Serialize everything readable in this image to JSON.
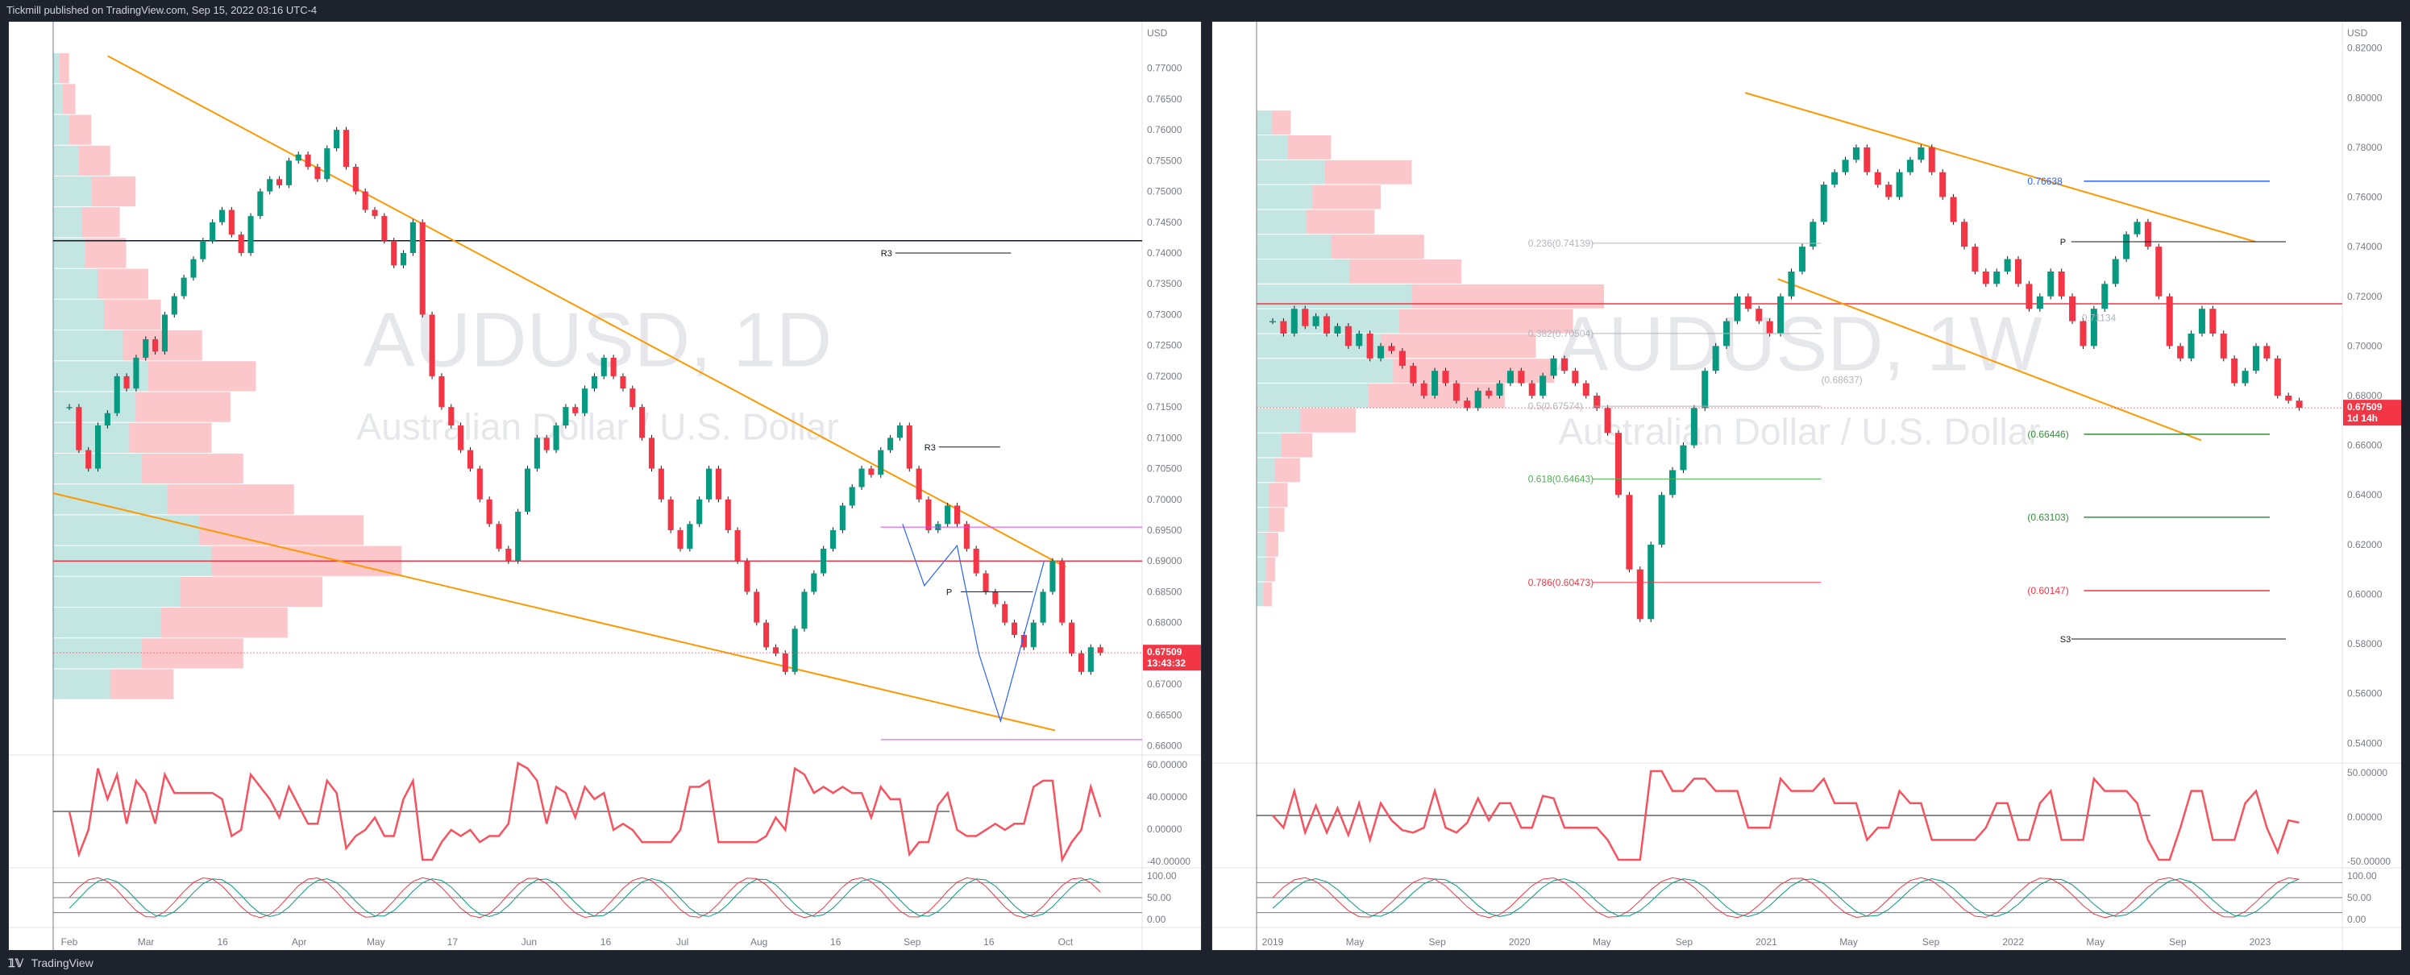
{
  "header": {
    "publisher_line": "Tickmill published on TradingView.com, Sep 15, 2022 03:16 UTC-4"
  },
  "footer": {
    "brand": "TradingView"
  },
  "chart_data": [
    {
      "type": "candlestick",
      "symbol_watermark": "AUDUSD, 1D",
      "description_watermark": "Australian Dollar / U.S. Dollar",
      "currency": "USD",
      "ylim": [
        0.6585,
        0.7765
      ],
      "y_ticks": [
        "0.77000",
        "0.76500",
        "0.76000",
        "0.75500",
        "0.75000",
        "0.74500",
        "0.74000",
        "0.73500",
        "0.73000",
        "0.72500",
        "0.72000",
        "0.71500",
        "0.71000",
        "0.70500",
        "0.70000",
        "0.69500",
        "0.69000",
        "0.68500",
        "0.68000",
        "0.67500",
        "0.67000",
        "0.66500",
        "0.66000"
      ],
      "x_ticks": [
        "Feb",
        "Mar",
        "16",
        "Apr",
        "May",
        "17",
        "Jun",
        "16",
        "Jul",
        "Aug",
        "16",
        "Sep",
        "16",
        "Oct"
      ],
      "last_price": "0.67509",
      "countdown": "13:43:32",
      "pivot_labels": [
        "R3",
        "R3",
        "P"
      ],
      "closes": [
        0.715,
        0.708,
        0.705,
        0.712,
        0.714,
        0.72,
        0.718,
        0.723,
        0.726,
        0.724,
        0.73,
        0.733,
        0.736,
        0.739,
        0.742,
        0.745,
        0.747,
        0.743,
        0.74,
        0.746,
        0.75,
        0.752,
        0.751,
        0.755,
        0.756,
        0.754,
        0.752,
        0.757,
        0.76,
        0.754,
        0.75,
        0.747,
        0.746,
        0.742,
        0.738,
        0.74,
        0.745,
        0.73,
        0.72,
        0.715,
        0.712,
        0.708,
        0.705,
        0.7,
        0.696,
        0.692,
        0.69,
        0.698,
        0.705,
        0.71,
        0.708,
        0.712,
        0.715,
        0.714,
        0.718,
        0.72,
        0.723,
        0.72,
        0.718,
        0.715,
        0.71,
        0.705,
        0.7,
        0.695,
        0.692,
        0.696,
        0.7,
        0.705,
        0.7,
        0.695,
        0.69,
        0.685,
        0.68,
        0.676,
        0.675,
        0.672,
        0.679,
        0.685,
        0.688,
        0.692,
        0.695,
        0.699,
        0.702,
        0.705,
        0.704,
        0.708,
        0.71,
        0.712,
        0.705,
        0.7,
        0.695,
        0.696,
        0.699,
        0.696,
        0.692,
        0.688,
        0.685,
        0.683,
        0.68,
        0.678,
        0.676,
        0.68,
        0.685,
        0.69,
        0.68,
        0.675,
        0.672,
        0.676,
        0.6751
      ],
      "volume_profile": [
        {
          "price": 0.77,
          "buy": 2,
          "sell": 3
        },
        {
          "price": 0.765,
          "buy": 3,
          "sell": 4
        },
        {
          "price": 0.76,
          "buy": 5,
          "sell": 7
        },
        {
          "price": 0.755,
          "buy": 8,
          "sell": 10
        },
        {
          "price": 0.75,
          "buy": 12,
          "sell": 14
        },
        {
          "price": 0.745,
          "buy": 9,
          "sell": 12
        },
        {
          "price": 0.74,
          "buy": 10,
          "sell": 13
        },
        {
          "price": 0.735,
          "buy": 14,
          "sell": 16
        },
        {
          "price": 0.73,
          "buy": 16,
          "sell": 18
        },
        {
          "price": 0.725,
          "buy": 22,
          "sell": 25
        },
        {
          "price": 0.72,
          "buy": 30,
          "sell": 34
        },
        {
          "price": 0.715,
          "buy": 26,
          "sell": 30
        },
        {
          "price": 0.71,
          "buy": 24,
          "sell": 26
        },
        {
          "price": 0.705,
          "buy": 28,
          "sell": 32
        },
        {
          "price": 0.7,
          "buy": 36,
          "sell": 40
        },
        {
          "price": 0.695,
          "buy": 46,
          "sell": 52
        },
        {
          "price": 0.69,
          "buy": 50,
          "sell": 60
        },
        {
          "price": 0.685,
          "buy": 40,
          "sell": 45
        },
        {
          "price": 0.68,
          "buy": 34,
          "sell": 40
        },
        {
          "price": 0.675,
          "buy": 28,
          "sell": 32
        },
        {
          "price": 0.67,
          "buy": 18,
          "sell": 20
        }
      ],
      "trendlines": [
        {
          "from": [
            0.05,
            0.772
          ],
          "to": [
            0.93,
            0.689
          ]
        },
        {
          "from": [
            0.0,
            0.701
          ],
          "to": [
            0.92,
            0.6625
          ]
        }
      ],
      "levels": [
        {
          "price": 0.742,
          "color": "#131722"
        },
        {
          "price": 0.69,
          "color": "#f23645"
        }
      ],
      "oscillator1": {
        "ticks": [
          "60.00000",
          "40.00000",
          "0.00000",
          "-40.00000"
        ]
      },
      "oscillator2": {
        "ticks": [
          "100.00",
          "50.00",
          "0.00"
        ]
      }
    },
    {
      "type": "candlestick",
      "symbol_watermark": "AUDUSD, 1W",
      "description_watermark": "Australian Dollar / U.S. Dollar",
      "currency": "USD",
      "ylim": [
        0.532,
        0.828
      ],
      "y_ticks": [
        "0.82000",
        "0.80000",
        "0.78000",
        "0.76000",
        "0.74000",
        "0.72000",
        "0.70000",
        "0.68000",
        "0.66000",
        "0.64000",
        "0.62000",
        "0.60000",
        "0.58000",
        "0.56000",
        "0.54000"
      ],
      "x_ticks": [
        "2019",
        "May",
        "Sep",
        "2020",
        "May",
        "Sep",
        "2021",
        "May",
        "Sep",
        "2022",
        "May",
        "Sep",
        "2023"
      ],
      "last_price": "0.67509",
      "countdown": "1d 14h",
      "fib_levels": [
        {
          "label": "0.236(0.74139)",
          "price": 0.74139,
          "color": "#b2b5be"
        },
        {
          "label": "0.382(0.70504)",
          "price": 0.70504,
          "color": "#b2b5be"
        },
        {
          "label": "0.5(0.67574)",
          "price": 0.67574,
          "color": "#b2b5be"
        },
        {
          "label": "0.618(0.64643)",
          "price": 0.64643,
          "color": "#4caf50"
        },
        {
          "label": "0.786(0.60473)",
          "price": 0.60473,
          "color": "#f23645"
        }
      ],
      "side_levels": [
        {
          "label": "0.76638",
          "price": 0.76638,
          "color": "#2962ff"
        },
        {
          "label": "(0.66446)",
          "price": 0.66446,
          "color": "#388e3c"
        },
        {
          "label": "(0.63103)",
          "price": 0.63103,
          "color": "#388e3c"
        },
        {
          "label": "(0.60147)",
          "price": 0.60147,
          "color": "#f23645"
        }
      ],
      "extra_fib_labels": [
        "(0.68637)",
        "0.71134"
      ],
      "pivot_labels": [
        "P",
        "S3"
      ],
      "closes": [
        0.71,
        0.705,
        0.715,
        0.708,
        0.712,
        0.705,
        0.708,
        0.7,
        0.705,
        0.695,
        0.7,
        0.698,
        0.692,
        0.685,
        0.68,
        0.69,
        0.685,
        0.678,
        0.675,
        0.682,
        0.68,
        0.685,
        0.69,
        0.685,
        0.68,
        0.688,
        0.695,
        0.69,
        0.685,
        0.68,
        0.675,
        0.665,
        0.64,
        0.61,
        0.59,
        0.62,
        0.64,
        0.65,
        0.66,
        0.675,
        0.69,
        0.7,
        0.71,
        0.72,
        0.715,
        0.71,
        0.705,
        0.72,
        0.73,
        0.74,
        0.75,
        0.765,
        0.77,
        0.775,
        0.78,
        0.77,
        0.765,
        0.76,
        0.77,
        0.775,
        0.78,
        0.77,
        0.76,
        0.75,
        0.74,
        0.73,
        0.725,
        0.73,
        0.735,
        0.725,
        0.715,
        0.72,
        0.73,
        0.72,
        0.71,
        0.7,
        0.715,
        0.725,
        0.735,
        0.745,
        0.75,
        0.74,
        0.72,
        0.7,
        0.695,
        0.705,
        0.715,
        0.705,
        0.695,
        0.685,
        0.69,
        0.7,
        0.695,
        0.68,
        0.678,
        0.6751
      ],
      "volume_profile": [
        {
          "price": 0.79,
          "buy": 5,
          "sell": 6
        },
        {
          "price": 0.78,
          "buy": 10,
          "sell": 14
        },
        {
          "price": 0.77,
          "buy": 22,
          "sell": 28
        },
        {
          "price": 0.76,
          "buy": 18,
          "sell": 22
        },
        {
          "price": 0.75,
          "buy": 16,
          "sell": 22
        },
        {
          "price": 0.74,
          "buy": 24,
          "sell": 30
        },
        {
          "price": 0.73,
          "buy": 30,
          "sell": 36
        },
        {
          "price": 0.72,
          "buy": 50,
          "sell": 62
        },
        {
          "price": 0.71,
          "buy": 46,
          "sell": 56
        },
        {
          "price": 0.7,
          "buy": 40,
          "sell": 50
        },
        {
          "price": 0.69,
          "buy": 44,
          "sell": 52
        },
        {
          "price": 0.68,
          "buy": 36,
          "sell": 44
        },
        {
          "price": 0.67,
          "buy": 14,
          "sell": 18
        },
        {
          "price": 0.66,
          "buy": 8,
          "sell": 10
        },
        {
          "price": 0.65,
          "buy": 6,
          "sell": 8
        },
        {
          "price": 0.64,
          "buy": 4,
          "sell": 6
        },
        {
          "price": 0.63,
          "buy": 4,
          "sell": 5
        },
        {
          "price": 0.62,
          "buy": 3,
          "sell": 4
        },
        {
          "price": 0.61,
          "buy": 3,
          "sell": 3
        },
        {
          "price": 0.6,
          "buy": 2,
          "sell": 3
        }
      ],
      "trendlines": [
        {
          "from": [
            0.45,
            0.802
          ],
          "to": [
            0.92,
            0.742
          ]
        },
        {
          "from": [
            0.48,
            0.727
          ],
          "to": [
            0.87,
            0.662
          ]
        }
      ],
      "levels": [
        {
          "price": 0.717,
          "color": "#f23645"
        }
      ],
      "oscillator1": {
        "ticks": [
          "50.00000",
          "0.00000",
          "-50.00000"
        ]
      },
      "oscillator2": {
        "ticks": [
          "100.00",
          "50.00",
          "0.00"
        ]
      }
    }
  ]
}
